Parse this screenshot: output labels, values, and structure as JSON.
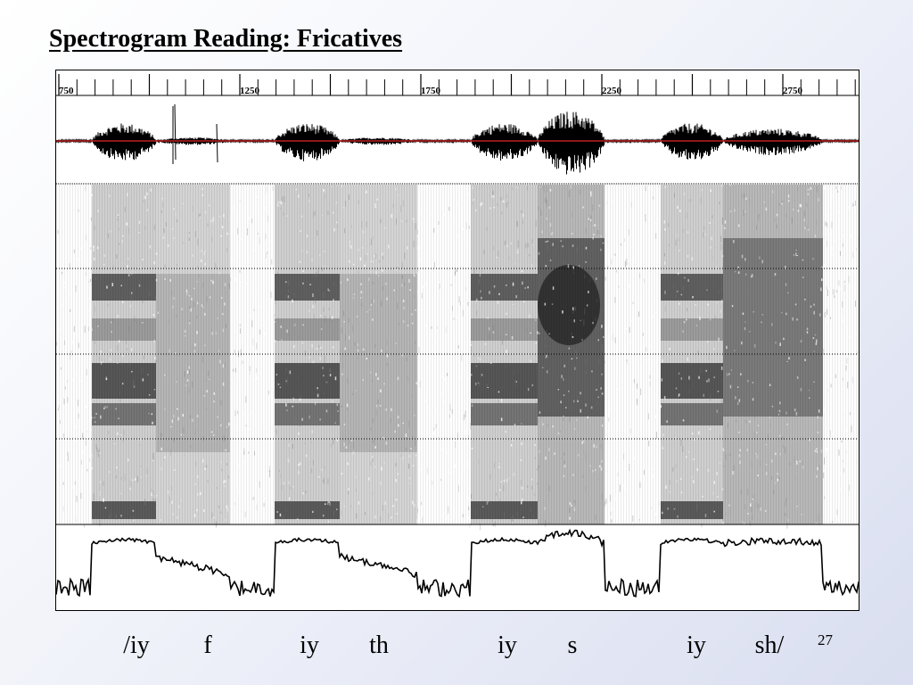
{
  "slide": {
    "title": "Spectrogram Reading: Fricatives",
    "slide_number": "27"
  },
  "time_axis": {
    "tick_labels": [
      "750",
      "1250",
      "1750",
      "2250",
      "2750"
    ]
  },
  "figure": {
    "waveform_reference_line_color": "#c0201f",
    "segments": [
      {
        "phone": "iy",
        "class": "vowel"
      },
      {
        "phone": "f",
        "class": "weak-fricative"
      },
      {
        "phone": "iy",
        "class": "vowel"
      },
      {
        "phone": "th",
        "class": "weak-fricative"
      },
      {
        "phone": "iy",
        "class": "vowel"
      },
      {
        "phone": "s",
        "class": "strong-fricative"
      },
      {
        "phone": "iy",
        "class": "vowel"
      },
      {
        "phone": "sh",
        "class": "strong-fricative"
      }
    ]
  },
  "phone_labels": [
    "/iy",
    "f",
    "iy",
    "th",
    "iy",
    "s",
    "iy",
    "sh/"
  ]
}
